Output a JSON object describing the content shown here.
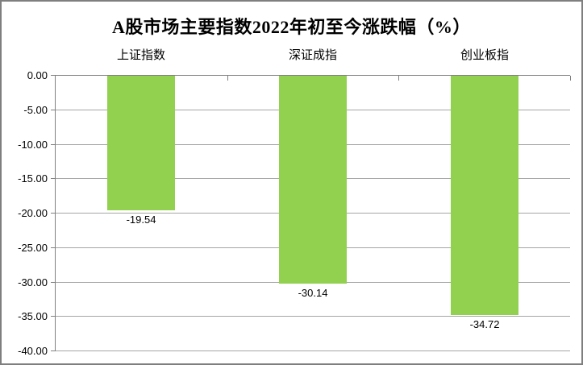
{
  "figure": {
    "title": "A股市场主要指数2022年初至今涨跌幅（%）"
  },
  "chart_data": {
    "type": "bar",
    "title": "A股市场主要指数2022年初至今涨跌幅（%）",
    "categories": [
      "上证指数",
      "深证成指",
      "创业板指"
    ],
    "values": [
      -19.54,
      -30.14,
      -34.72
    ],
    "value_labels": [
      "-19.54",
      "-30.14",
      "-34.72"
    ],
    "xlabel": "",
    "ylabel": "",
    "ylim": [
      -40,
      0
    ],
    "y_tick_step": 5,
    "y_tick_labels": [
      "0.00",
      "-5.00",
      "-10.00",
      "-15.00",
      "-20.00",
      "-25.00",
      "-30.00",
      "-35.00",
      "-40.00"
    ],
    "grid": true,
    "legend": false,
    "colors": {
      "bar": "#92D050",
      "gridline": "#A6A6A6",
      "axis": "#808080",
      "frame": "#7F7F7F",
      "text": "#000000",
      "background": "#FFFFFF"
    }
  }
}
